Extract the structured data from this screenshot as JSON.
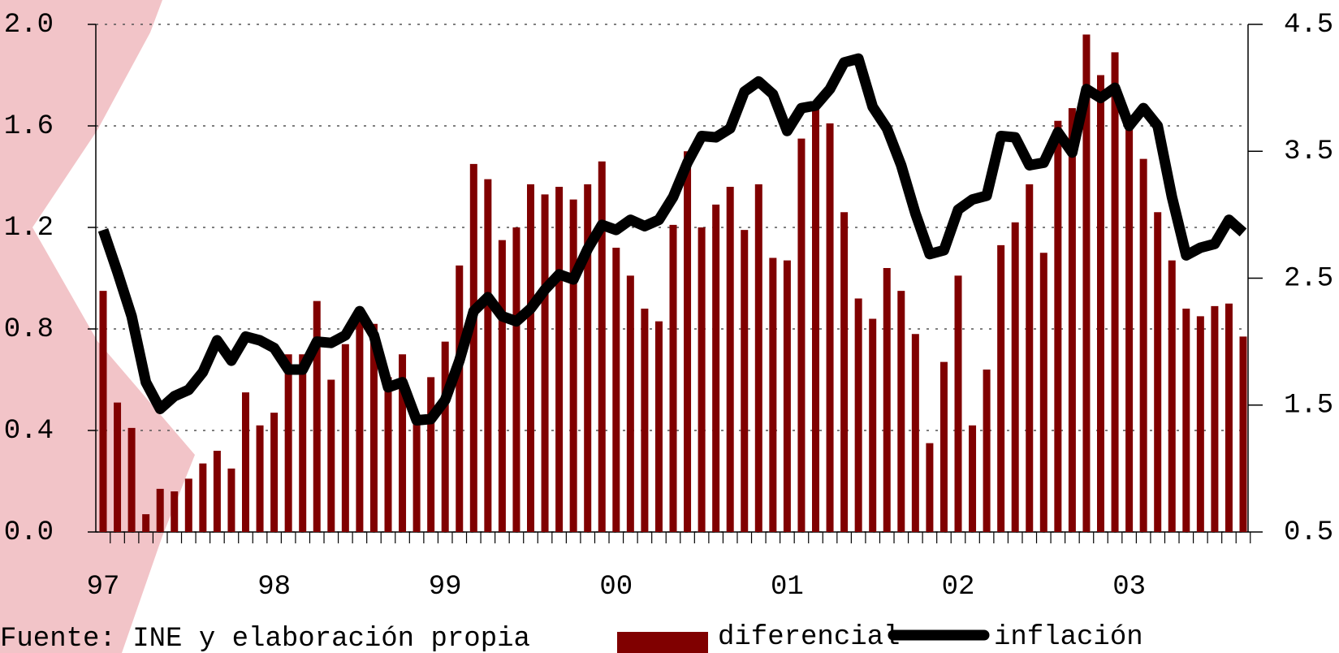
{
  "chart_data": {
    "type": "bar",
    "source": "Fuente: INE y elaboración propia",
    "categories": [
      "97",
      null,
      null,
      null,
      null,
      null,
      null,
      null,
      null,
      null,
      null,
      null,
      "98",
      null,
      null,
      null,
      null,
      null,
      null,
      null,
      null,
      null,
      null,
      null,
      "99",
      null,
      null,
      null,
      null,
      null,
      null,
      null,
      null,
      null,
      null,
      null,
      "00",
      null,
      null,
      null,
      null,
      null,
      null,
      null,
      null,
      null,
      null,
      null,
      "01",
      null,
      null,
      null,
      null,
      null,
      null,
      null,
      null,
      null,
      null,
      null,
      "02",
      null,
      null,
      null,
      null,
      null,
      null,
      null,
      null,
      null,
      null,
      null,
      "03",
      null,
      null,
      null,
      null,
      null,
      null,
      null,
      null
    ],
    "series": [
      {
        "name": "diferencial",
        "type": "bar",
        "color": "#800000",
        "values": [
          0.95,
          0.51,
          0.41,
          0.07,
          0.17,
          0.16,
          0.21,
          0.27,
          0.32,
          0.25,
          0.55,
          0.42,
          0.47,
          0.7,
          0.7,
          0.91,
          0.6,
          0.74,
          0.84,
          0.82,
          0.61,
          0.7,
          0.44,
          0.61,
          0.75,
          1.05,
          1.45,
          1.39,
          1.15,
          1.2,
          1.37,
          1.33,
          1.36,
          1.31,
          1.37,
          1.46,
          1.12,
          1.01,
          0.88,
          0.83,
          1.21,
          1.5,
          1.2,
          1.29,
          1.36,
          1.19,
          1.37,
          1.08,
          1.07,
          1.55,
          1.67,
          1.61,
          1.26,
          0.92,
          0.84,
          1.04,
          0.95,
          0.78,
          0.35,
          0.67,
          1.01,
          0.42,
          0.64,
          1.13,
          1.22,
          1.37,
          1.1,
          1.62,
          1.67,
          1.96,
          1.8,
          1.89,
          1.62,
          1.47,
          1.26,
          1.07,
          0.88,
          0.85,
          0.89,
          0.9,
          0.77
        ]
      },
      {
        "name": "inflación",
        "type": "line",
        "axis": "y2",
        "color": "#000000",
        "values": [
          2.88,
          2.55,
          2.2,
          1.68,
          1.47,
          1.57,
          1.62,
          1.76,
          2.01,
          1.85,
          2.04,
          2.01,
          1.95,
          1.78,
          1.78,
          2.0,
          1.99,
          2.05,
          2.24,
          2.05,
          1.64,
          1.68,
          1.38,
          1.39,
          1.54,
          1.85,
          2.24,
          2.35,
          2.2,
          2.16,
          2.26,
          2.41,
          2.53,
          2.49,
          2.73,
          2.92,
          2.88,
          2.96,
          2.91,
          2.96,
          3.14,
          3.41,
          3.62,
          3.61,
          3.68,
          3.97,
          4.05,
          3.95,
          3.66,
          3.84,
          3.86,
          3.99,
          4.2,
          4.23,
          3.85,
          3.68,
          3.39,
          3.01,
          2.69,
          2.72,
          3.04,
          3.12,
          3.15,
          3.62,
          3.61,
          3.39,
          3.41,
          3.65,
          3.49,
          3.99,
          3.92,
          4.0,
          3.7,
          3.84,
          3.7,
          3.14,
          2.68,
          2.74,
          2.77,
          2.96,
          2.86
        ]
      }
    ],
    "ylim": [
      0,
      2.0
    ],
    "yticks": [
      {
        "value": 0,
        "label": "0.0"
      },
      0.4,
      0.8,
      1.2,
      1.6,
      {
        "value": 2,
        "label": "2.0"
      }
    ],
    "y2lim": [
      0.5,
      4.5
    ],
    "y2ticks": [
      0.5,
      1.5,
      2.5,
      3.5,
      4.5
    ],
    "grid": true
  }
}
